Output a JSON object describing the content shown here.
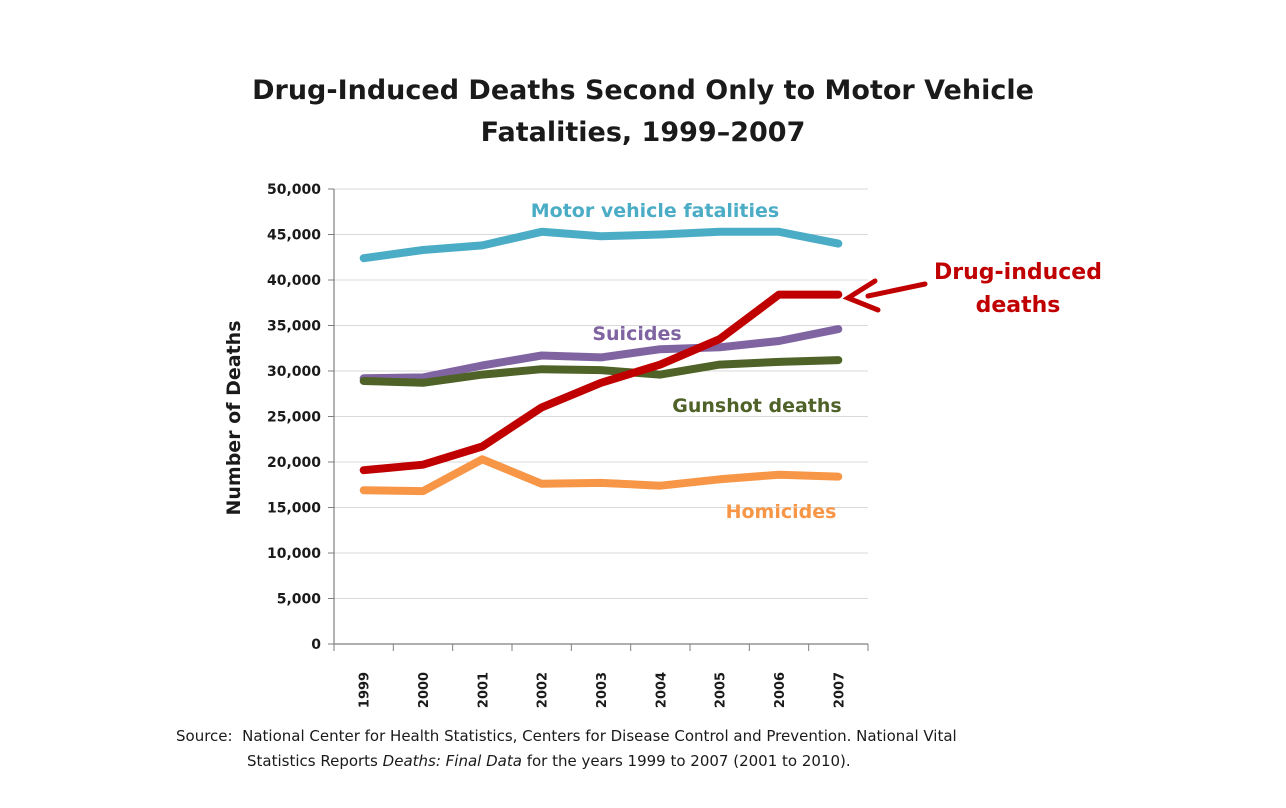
{
  "title_line1": "Drug-Induced Deaths Second Only to Motor Vehicle",
  "title_line2": "Fatalities, 1999–2007",
  "source": {
    "label": "Source:",
    "line1_text": "National Center for Health Statistics, Centers for Disease Control and Prevention.  National Vital",
    "line2_prefix": "Statistics Reports",
    "line2_italic": "Deaths:  Final Data",
    "line2_suffix": "for the years 1999 to 2007 (2001 to 2010)."
  },
  "chart_data": {
    "type": "line",
    "title": "Drug-Induced Deaths Second Only to Motor Vehicle Fatalities, 1999–2007",
    "xlabel": "",
    "ylabel": "Number of Deaths",
    "ylim": [
      0,
      50000
    ],
    "yticks": [
      0,
      5000,
      10000,
      15000,
      20000,
      25000,
      30000,
      35000,
      40000,
      45000,
      50000
    ],
    "ytick_labels": [
      "0",
      "5,000",
      "10,000",
      "15,000",
      "20,000",
      "25,000",
      "30,000",
      "35,000",
      "40,000",
      "45,000",
      "50,000"
    ],
    "categories": [
      "1999",
      "2000",
      "2001",
      "2002",
      "2003",
      "2004",
      "2005",
      "2006",
      "2007"
    ],
    "grid": true,
    "series": [
      {
        "name": "Motor vehicle fatalities",
        "color": "#4bacc6",
        "values": [
          42400,
          43300,
          43800,
          45300,
          44800,
          45000,
          45300,
          45300,
          44000
        ]
      },
      {
        "name": "Suicides",
        "color": "#8064a2",
        "values": [
          29200,
          29300,
          30600,
          31700,
          31500,
          32400,
          32600,
          33300,
          34600
        ]
      },
      {
        "name": "Gunshot deaths",
        "color": "#4f6228",
        "values": [
          28900,
          28700,
          29600,
          30200,
          30100,
          29600,
          30700,
          31000,
          31200
        ]
      },
      {
        "name": "Drug-induced deaths",
        "color": "#c00000",
        "values": [
          19100,
          19700,
          21700,
          26000,
          28700,
          30700,
          33500,
          38400,
          38400
        ]
      },
      {
        "name": "Homicides",
        "color": "#f79646",
        "values": [
          16900,
          16800,
          20300,
          17600,
          17700,
          17400,
          18100,
          18600,
          18400
        ]
      }
    ],
    "annotations": [
      {
        "text": "Motor vehicle fatalities",
        "color": "#4bacc6"
      },
      {
        "text": "Suicides",
        "color": "#8064a2"
      },
      {
        "text": "Gunshot deaths",
        "color": "#4f6228"
      },
      {
        "text": "Homicides",
        "color": "#f79646"
      },
      {
        "text_lines": [
          "Drug-induced",
          "deaths"
        ],
        "color": "#c00000",
        "arrow": true
      }
    ]
  }
}
